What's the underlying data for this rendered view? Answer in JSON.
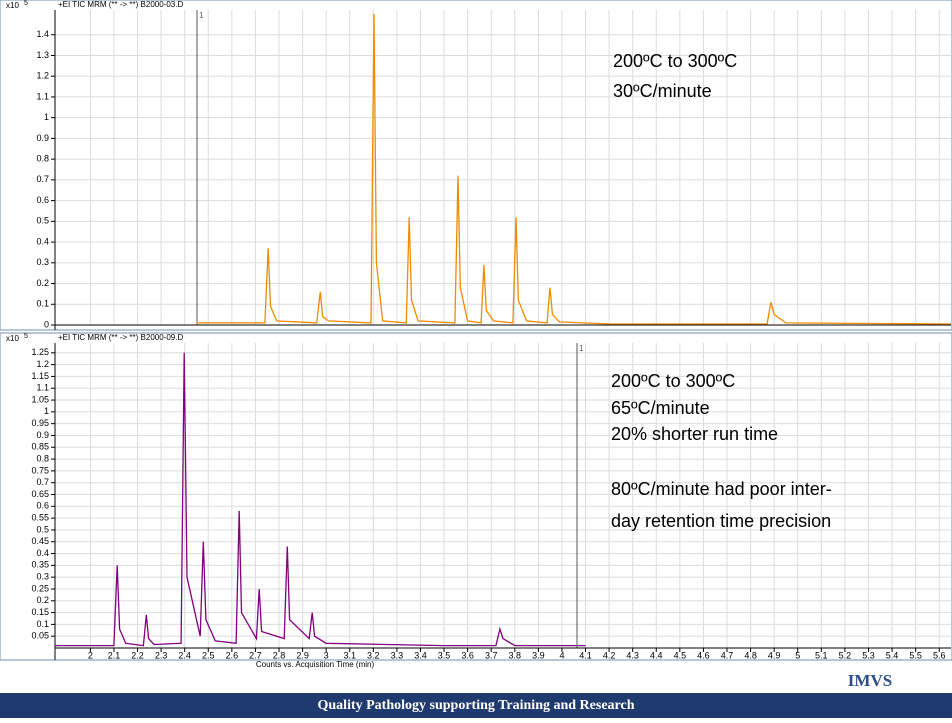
{
  "chart_data": [
    {
      "type": "line",
      "multiplier": "x10",
      "exponent": "5",
      "header": "+EI TIC MRM (** -> **) B2000-03.D",
      "marker": "1",
      "annotations": [
        "200ºC to 300ºC",
        "30ºC/minute"
      ],
      "xlim": [
        1.85,
        5.65
      ],
      "ylim": [
        0,
        1.5
      ],
      "yticks": [
        0,
        0.1,
        0.2,
        0.3,
        0.4,
        0.5,
        0.6,
        0.7,
        0.8,
        0.9,
        1,
        1.1,
        1.2,
        1.3,
        1.4
      ],
      "grid": true,
      "series": [
        {
          "name": "B2000-03.D",
          "color": "#f08a00",
          "x": [
            2.45,
            2.74,
            2.754,
            2.764,
            2.79,
            2.96,
            2.975,
            2.985,
            3.01,
            3.19,
            3.203,
            3.213,
            3.24,
            3.34,
            3.352,
            3.362,
            3.39,
            3.546,
            3.559,
            3.569,
            3.6,
            3.657,
            3.669,
            3.679,
            3.71,
            3.792,
            3.805,
            3.815,
            3.85,
            3.937,
            3.949,
            3.96,
            3.99,
            4.2,
            4.87,
            4.886,
            4.9,
            4.95,
            5.65
          ],
          "values": [
            0.01,
            0.01,
            0.37,
            0.09,
            0.02,
            0.01,
            0.16,
            0.04,
            0.02,
            0.01,
            1.5,
            0.3,
            0.02,
            0.01,
            0.52,
            0.12,
            0.02,
            0.01,
            0.72,
            0.18,
            0.02,
            0.01,
            0.29,
            0.07,
            0.02,
            0.01,
            0.52,
            0.12,
            0.02,
            0.01,
            0.18,
            0.05,
            0.015,
            0.005,
            0.005,
            0.11,
            0.05,
            0.01,
            0.005
          ]
        }
      ]
    },
    {
      "type": "line",
      "multiplier": "x10",
      "exponent": "5",
      "header": "+EI TIC MRM (** -> **) B2000-09.D",
      "marker": "1",
      "annotations": [
        "200ºC to 300ºC",
        "65ºC/minute",
        "20% shorter run time",
        "80ºC/minute had poor inter-",
        "day retention time precision"
      ],
      "xlabel": "Counts vs. Acquisition Time (min)",
      "xlim": [
        1.85,
        5.65
      ],
      "ylim": [
        0,
        1.3
      ],
      "xticks": [
        2,
        2.1,
        2.2,
        2.3,
        2.4,
        2.5,
        2.6,
        2.7,
        2.8,
        2.9,
        3,
        3.1,
        3.2,
        3.3,
        3.4,
        3.5,
        3.6,
        3.7,
        3.8,
        3.9,
        4,
        4.1,
        4.2,
        4.3,
        4.4,
        4.5,
        4.6,
        4.7,
        4.8,
        4.9,
        5,
        5.1,
        5.2,
        5.3,
        5.4,
        5.5,
        5.6
      ],
      "yticks": [
        0.05,
        0.1,
        0.15,
        0.2,
        0.25,
        0.3,
        0.35,
        0.4,
        0.45,
        0.5,
        0.55,
        0.6,
        0.65,
        0.7,
        0.75,
        0.8,
        0.85,
        0.9,
        0.95,
        1,
        1.05,
        1.1,
        1.15,
        1.2,
        1.25
      ],
      "grid": true,
      "series": [
        {
          "name": "B2000-09.D",
          "color": "#800080",
          "x": [
            1.85,
            2.1,
            2.114,
            2.124,
            2.15,
            2.225,
            2.237,
            2.247,
            2.27,
            2.385,
            2.398,
            2.41,
            2.466,
            2.479,
            2.49,
            2.53,
            2.618,
            2.631,
            2.641,
            2.704,
            2.716,
            2.726,
            2.822,
            2.835,
            2.845,
            2.928,
            2.941,
            2.951,
            3.0,
            3.5,
            3.72,
            3.737,
            3.75,
            3.8,
            4.1
          ],
          "values": [
            0.01,
            0.01,
            0.35,
            0.08,
            0.02,
            0.01,
            0.14,
            0.04,
            0.015,
            0.02,
            1.25,
            0.3,
            0.05,
            0.45,
            0.12,
            0.03,
            0.02,
            0.58,
            0.15,
            0.04,
            0.25,
            0.07,
            0.04,
            0.43,
            0.12,
            0.04,
            0.15,
            0.05,
            0.02,
            0.01,
            0.01,
            0.08,
            0.04,
            0.01,
            0.01
          ]
        }
      ]
    }
  ],
  "footer": {
    "logo": "IMVS",
    "text": "Quality Pathology supporting Training and Research"
  }
}
